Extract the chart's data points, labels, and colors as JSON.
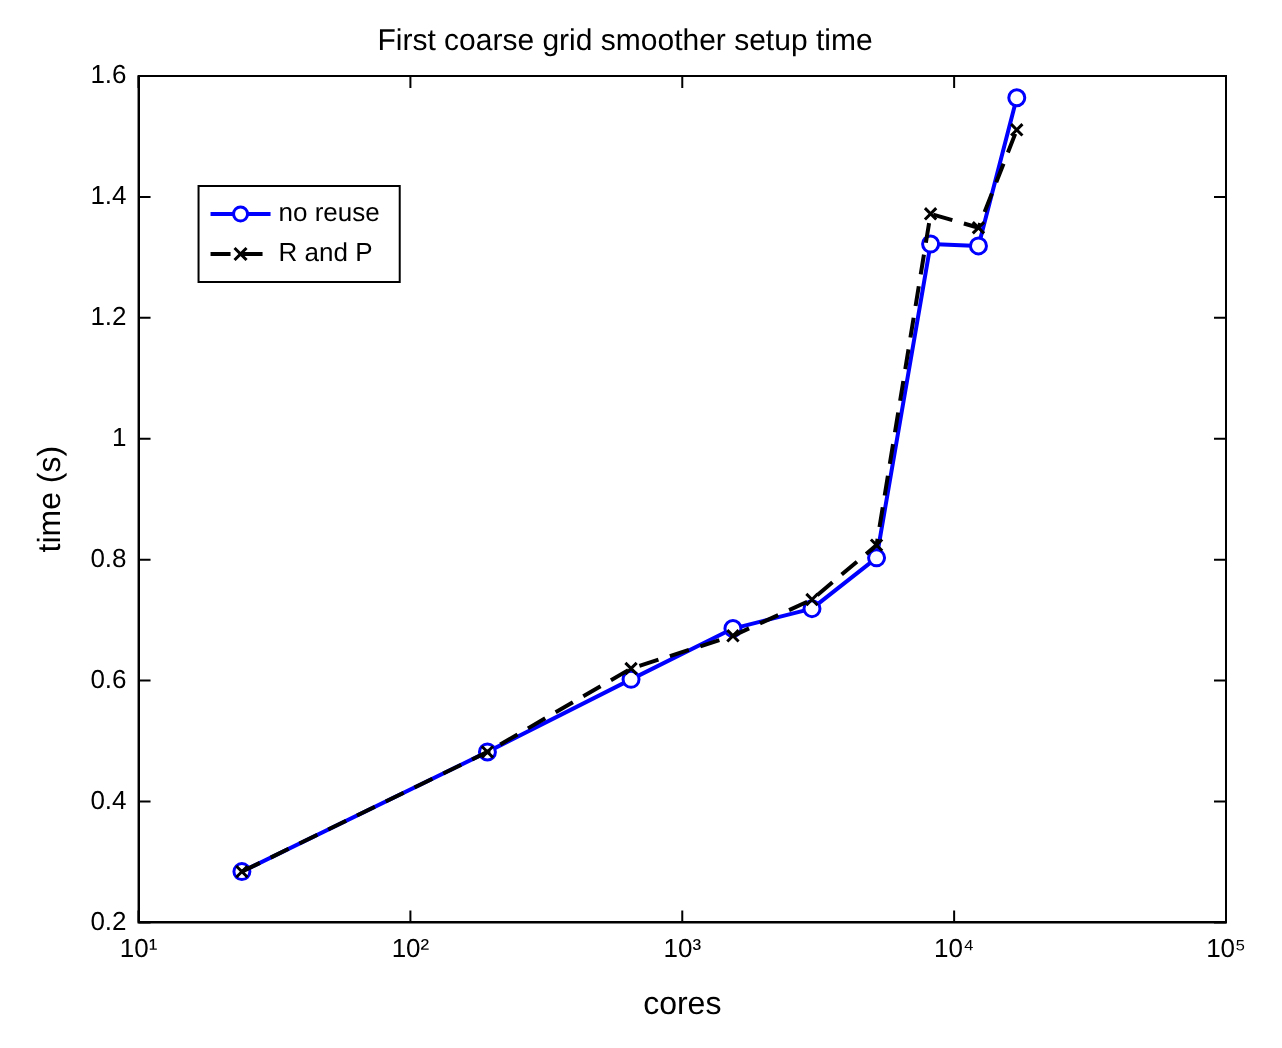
{
  "chart_data": {
    "type": "line",
    "title": "First coarse grid smoother setup time",
    "xlabel": "cores",
    "ylabel": "time (s)",
    "log": "x",
    "xlim": [
      10,
      100000
    ],
    "xticks": [
      {
        "value": 10,
        "label": "10¹"
      },
      {
        "value": 100,
        "label": "10²"
      },
      {
        "value": 1000,
        "label": "10³"
      },
      {
        "value": 10000,
        "label": "10⁴"
      },
      {
        "value": 100000,
        "label": "10⁵"
      }
    ],
    "ylim": [
      0.2,
      1.6
    ],
    "yticks": [
      0.2,
      0.4,
      0.6,
      0.8,
      1,
      1.2,
      1.4,
      1.6
    ],
    "grid": false,
    "legend": "top left",
    "series": [
      {
        "name": "no reuse",
        "color": "#0000ff",
        "marker": "circle",
        "line_style": "solid",
        "x": [
          24,
          192,
          648,
          1536,
          3000,
          5184,
          8192,
          12288,
          17000
        ],
        "values": [
          0.284,
          0.482,
          0.602,
          0.686,
          0.719,
          0.803,
          1.322,
          1.319,
          1.564
        ]
      },
      {
        "name": "R and P",
        "color": "#000000",
        "marker": "cross",
        "line_style": "dashed",
        "x": [
          24,
          192,
          648,
          1536,
          3000,
          5184,
          8192,
          12288,
          17000
        ],
        "values": [
          0.284,
          0.482,
          0.62,
          0.674,
          0.734,
          0.824,
          1.372,
          1.349,
          1.511
        ]
      }
    ]
  }
}
